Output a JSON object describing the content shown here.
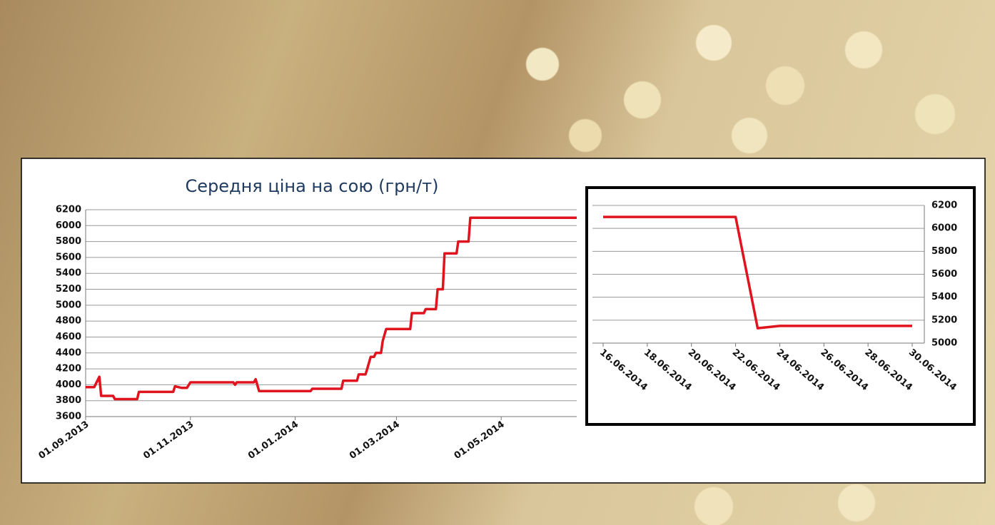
{
  "chart_data": [
    {
      "type": "line",
      "title": "Середня ціна на сою (грн/т)",
      "color": "#e0141e",
      "grid": true,
      "x": [
        "01.09.2013",
        "06.09.2013",
        "09.09.2013",
        "10.09.2013",
        "17.09.2013",
        "18.09.2013",
        "01.10.2013",
        "02.10.2013",
        "22.10.2013",
        "23.10.2013",
        "27.10.2013",
        "30.10.2013",
        "01.11.2013",
        "26.11.2013",
        "27.11.2013",
        "28.11.2013",
        "08.12.2013",
        "09.12.2013",
        "11.12.2013",
        "10.01.2014",
        "11.01.2014",
        "28.01.2014",
        "29.01.2014",
        "06.02.2014",
        "07.02.2014",
        "11.02.2014",
        "12.02.2014",
        "14.02.2014",
        "16.02.2014",
        "17.02.2014",
        "20.02.2014",
        "21.02.2014",
        "23.02.2014",
        "24.02.2014",
        "09.03.2014",
        "10.03.2014",
        "17.03.2014",
        "18.03.2014",
        "24.03.2014",
        "25.03.2014",
        "28.03.2014",
        "29.03.2014",
        "05.04.2014",
        "06.04.2014",
        "12.04.2014",
        "13.04.2014",
        "14.06.2014"
      ],
      "values": [
        3970,
        3970,
        4100,
        3860,
        3860,
        3820,
        3820,
        3910,
        3910,
        3980,
        3960,
        3960,
        4030,
        4030,
        4000,
        4030,
        4030,
        4070,
        3920,
        3920,
        3950,
        3950,
        4050,
        4050,
        4130,
        4130,
        4200,
        4350,
        4350,
        4400,
        4400,
        4550,
        4700,
        4700,
        4700,
        4900,
        4900,
        4950,
        4950,
        5200,
        5200,
        5650,
        5650,
        5800,
        5800,
        6100,
        6100
      ],
      "xlim": [
        "01.09.2013",
        "14.06.2014"
      ],
      "xticks": [
        "01.09.2013",
        "01.11.2013",
        "01.01.2014",
        "01.03.2014",
        "01.05.2014"
      ],
      "ylim": [
        3600,
        6200
      ],
      "yticks": [
        3600,
        3800,
        4000,
        4200,
        4400,
        4600,
        4800,
        5000,
        5200,
        5400,
        5600,
        5800,
        6000,
        6200
      ]
    },
    {
      "type": "line",
      "color": "#e0141e",
      "grid": true,
      "x": [
        "16.06.2014",
        "17.06.2014",
        "18.06.2014",
        "19.06.2014",
        "20.06.2014",
        "21.06.2014",
        "22.06.2014",
        "23.06.2014",
        "24.06.2014",
        "25.06.2014",
        "26.06.2014",
        "27.06.2014",
        "28.06.2014",
        "29.06.2014",
        "30.06.2014"
      ],
      "values": [
        6100,
        6100,
        6100,
        6100,
        6100,
        6100,
        6100,
        5130,
        5150,
        5150,
        5150,
        5150,
        5150,
        5150,
        5150
      ],
      "xlim": [
        "16.06.2014",
        "30.06.2014"
      ],
      "xticks": [
        "16.06.2014",
        "18.06.2014",
        "20.06.2014",
        "22.06.2014",
        "24.06.2014",
        "26.06.2014",
        "28.06.2014",
        "30.06.2014"
      ],
      "ylim": [
        5000,
        6200
      ],
      "yticks": [
        5000,
        5200,
        5400,
        5600,
        5800,
        6000,
        6200
      ]
    }
  ]
}
